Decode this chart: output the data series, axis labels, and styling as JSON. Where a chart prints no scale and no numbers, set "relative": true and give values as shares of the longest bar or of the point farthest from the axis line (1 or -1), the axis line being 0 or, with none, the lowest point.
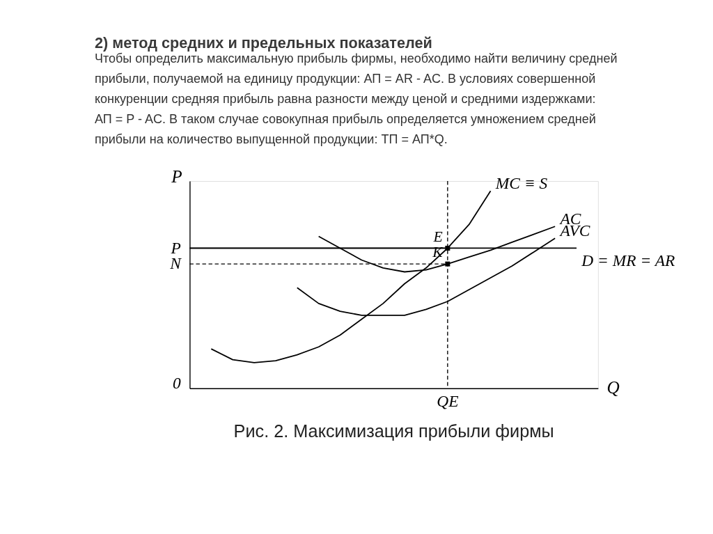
{
  "chart_data": {
    "type": "line",
    "relative": true,
    "title": "2)   метод средних и предельных показателей",
    "subtitle": "Чтобы определить максимальную прибыль фирмы, необходимо найти величину средней прибыли, получаемой на единицу продукции: АП = AR - AC. В условиях совершенной конкуренции средняя прибыль равна разности между ценой и средними издержками: АП = P - AC. В таком случае совокупная прибыль определяется умножением средней прибыли на количество выпущенной продукции: ТП = АП*Q.",
    "xlabel": "Q",
    "ylabel": "P",
    "marker": "none",
    "line_style": "solid",
    "legend": false,
    "grid": false,
    "categories": [
      null,
      null,
      null,
      null,
      null,
      null,
      null,
      null,
      null,
      null,
      null,
      null,
      null,
      null,
      null,
      null,
      null,
      null,
      null
    ],
    "series": [
      {
        "name": "MC ≡ S",
        "color": "#000000",
        "values": [
          null,
          0.2,
          0.145,
          0.13,
          0.14,
          0.17,
          0.21,
          0.27,
          0.35,
          0.43,
          0.53,
          0.61,
          0.71,
          0.83,
          1.0,
          null,
          null,
          null,
          null
        ]
      },
      {
        "name": "AC",
        "color": "#000000",
        "values": [
          null,
          null,
          null,
          null,
          null,
          null,
          0.77,
          0.71,
          0.65,
          0.61,
          0.59,
          0.6,
          0.63,
          0.665,
          0.7,
          0.74,
          0.78,
          0.82,
          null
        ]
      },
      {
        "name": "AVC",
        "color": "#000000",
        "values": [
          null,
          null,
          null,
          null,
          null,
          0.51,
          0.43,
          0.39,
          0.37,
          0.37,
          0.37,
          0.4,
          0.44,
          0.5,
          0.56,
          0.62,
          0.69,
          0.76,
          null
        ]
      },
      {
        "name": "D = MR = AR",
        "color": "#000000",
        "values": [
          0.71,
          0.71,
          0.71,
          0.71,
          0.71,
          0.71,
          0.71,
          0.71,
          0.71,
          0.71,
          0.71,
          0.71,
          0.71,
          0.71,
          0.71,
          0.71,
          0.71,
          0.71,
          0.71
        ]
      }
    ],
    "ref_lines": [
      {
        "axis": "y",
        "value": 0.71,
        "label": "P",
        "line_style": "solid"
      },
      {
        "axis": "y",
        "value": 0.63,
        "label": "N",
        "line_style": "dashed"
      }
    ],
    "annotations": [
      "0",
      "QE",
      "E",
      "K",
      "Рис. 2. Максимизация прибыли фирмы"
    ]
  }
}
